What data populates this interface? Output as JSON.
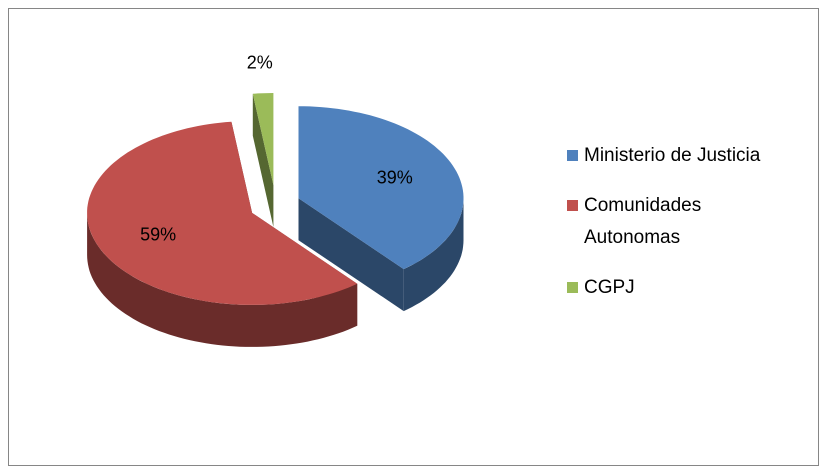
{
  "chart_data": {
    "type": "pie",
    "categories": [
      "Ministerio de Justicia",
      "Comunidades Autonomas",
      "CGPJ"
    ],
    "values": [
      39,
      59,
      2
    ],
    "value_labels": [
      "39%",
      "59%",
      "2%"
    ],
    "colors": [
      "#4f81bd",
      "#c0504d",
      "#9bbb59"
    ],
    "legend": "right"
  }
}
